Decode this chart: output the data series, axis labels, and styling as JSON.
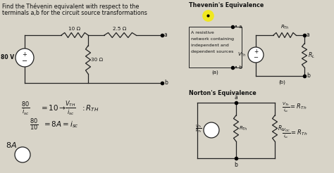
{
  "background_color": "#d8d4c8",
  "text_color": "#111111",
  "line_color": "#222222",
  "highlight_color": "#f0e820",
  "fig_width": 4.74,
  "fig_height": 2.46,
  "dpi": 100,
  "top_text1": "Find the Thévenin equivalent with respect to the",
  "top_text2": "terminals a,b for the circuit source transformations",
  "thevenin_title": "Thevenin's Equivalence",
  "norton_title": "Norton's Equivalence",
  "res_text1": "A resistive",
  "res_text2": "network containing",
  "res_text3": "independent and",
  "res_text4": "dependent sources",
  "v80": "80 V",
  "r10": "10 Ω",
  "r25": "2.5 Ω",
  "r30": "30 Ω",
  "label_a": "•a",
  "label_b": "•b",
  "label_a2": "a",
  "label_b2": "b",
  "r_th": "R_Th",
  "r_l": "R_L",
  "v_th": "V_Th",
  "vth_rth": "V_Th",
  "rth_label": "R_Th"
}
